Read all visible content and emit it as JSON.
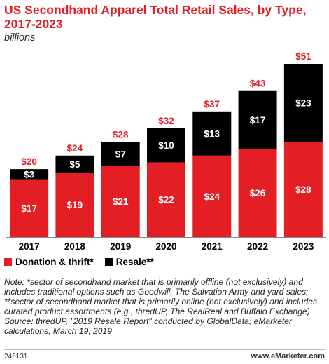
{
  "header": {
    "title": "US Secondhand Apparel Total Retail Sales, by Type, 2017-2023",
    "subtitle": "billions"
  },
  "chart_data": {
    "type": "bar",
    "stacked": true,
    "categories": [
      "2017",
      "2018",
      "2019",
      "2020",
      "2021",
      "2022",
      "2023"
    ],
    "series": [
      {
        "name": "Donation & thrift*",
        "values": [
          17,
          19,
          21,
          22,
          24,
          26,
          28
        ],
        "labels": [
          "$17",
          "$19",
          "$21",
          "$22",
          "$24",
          "$26",
          "$28"
        ],
        "color": "#e31e24"
      },
      {
        "name": "Resale**",
        "values": [
          3,
          5,
          7,
          10,
          13,
          17,
          23
        ],
        "labels": [
          "$3",
          "$5",
          "$7",
          "$10",
          "$13",
          "$17",
          "$23"
        ],
        "color": "#000000"
      }
    ],
    "totals": [
      20,
      24,
      28,
      32,
      37,
      43,
      51
    ],
    "total_labels": [
      "$20",
      "$24",
      "$28",
      "$32",
      "$37",
      "$43",
      "$51"
    ],
    "total_label_color": "#e31e24",
    "ylim": [
      0,
      51
    ],
    "grid": false,
    "legend_position": "bottom-left"
  },
  "footer": {
    "note": "Note: *sector of secondhand market that is primarily offline (not exclusively) and includes traditional options such as Goodwill, The Salvation Army and yard sales; **sector of secondhand market that is primarily online (not exclusively) and includes curated product assortments (e.g., thredUP, The RealReal and Buffalo Exchange)",
    "source": "Source: thredUP, \"2019 Resale Report\" conducted by GlobalData; eMarketer calculations, March 19, 2019",
    "chart_id": "246131",
    "brand": "www.eMarketer.com"
  }
}
